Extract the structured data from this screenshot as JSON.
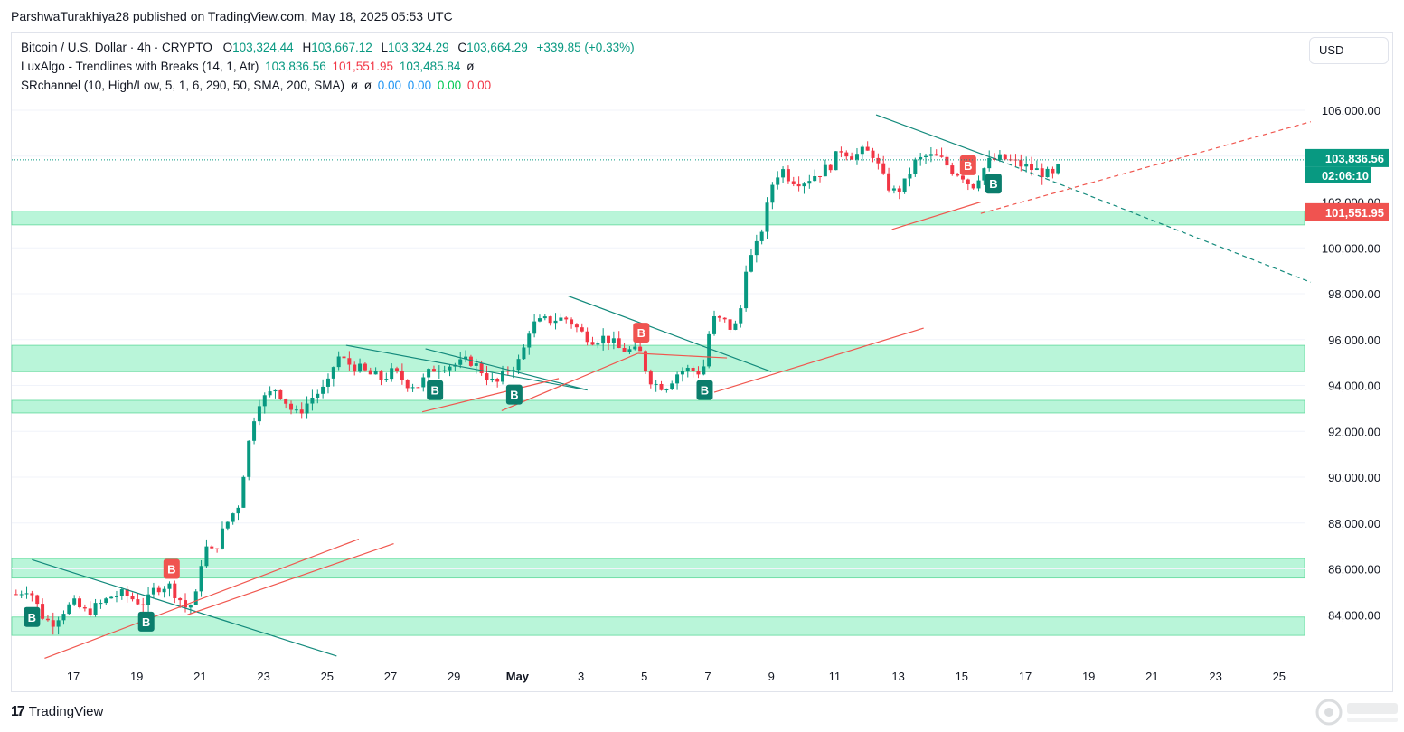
{
  "header": {
    "published": "ParshwaTurakhiya28 published on TradingView.com, May 18, 2025 05:53 UTC"
  },
  "legend": {
    "symbol": "Bitcoin / U.S. Dollar · 4h · CRYPTO",
    "o_label": "O",
    "o": "103,324.44",
    "h_label": "H",
    "h": "103,667.12",
    "l_label": "L",
    "l": "103,324.29",
    "c_label": "C",
    "c": "103,664.29",
    "change": "+339.85 (+0.33%)",
    "ind1_name": "LuxAlgo - Trendlines with Breaks (14, 1, Atr)",
    "ind1_v1": "103,836.56",
    "ind1_v2": "101,551.95",
    "ind1_v3": "103,485.84",
    "ind1_v4": "ø",
    "ind2_name": "SRchannel (10, High/Low, 5, 1, 6, 290, 50, SMA, 200, SMA)",
    "ind2_v1": "ø",
    "ind2_v2": "ø",
    "ind2_v3": "0.00",
    "ind2_v4": "0.00",
    "ind2_v5": "0.00",
    "ind2_v6": "0.00"
  },
  "currency_button": "USD",
  "brand": {
    "logo": "TradingView"
  },
  "price_labels": {
    "last": "103,836.56",
    "countdown": "02:06:10",
    "lower": "101,551.95"
  },
  "colors": {
    "up": "#089981",
    "down": "#f23645",
    "zone": "#b9f5d9",
    "zone_border": "#5fd99a",
    "teal_line": "#138a7c",
    "red_line": "#f0574f",
    "blue": "#2962ff"
  },
  "chart_data": {
    "type": "candlestick",
    "title": "Bitcoin / U.S. Dollar · 4h · CRYPTO",
    "y_ticks": [
      "106,000.00",
      "104,000.00",
      "102,000.00",
      "100,000.00",
      "98,000.00",
      "96,000.00",
      "94,000.00",
      "92,000.00",
      "90,000.00",
      "88,000.00",
      "86,000.00",
      "84,000.00"
    ],
    "y_tick_values": [
      106000,
      104000,
      102000,
      100000,
      98000,
      96000,
      94000,
      92000,
      90000,
      88000,
      86000,
      84000
    ],
    "x_ticks": [
      "17",
      "19",
      "21",
      "23",
      "25",
      "27",
      "29",
      "May",
      "3",
      "5",
      "7",
      "9",
      "11",
      "13",
      "15",
      "17",
      "19",
      "21",
      "23",
      "25"
    ],
    "x_tick_days": [
      17,
      19,
      21,
      23,
      25,
      27,
      29,
      31,
      33,
      35,
      37,
      39,
      41,
      43,
      45,
      47,
      49,
      51,
      53,
      55
    ],
    "ylim": [
      82000,
      107800
    ],
    "xlim_days": [
      15.2,
      56.0
    ],
    "close_path": [
      [
        15.2,
        84900
      ],
      [
        15.6,
        85200
      ],
      [
        16.0,
        84000
      ],
      [
        16.3,
        83600
      ],
      [
        16.7,
        84200
      ],
      [
        17.0,
        84500
      ],
      [
        17.4,
        84100
      ],
      [
        17.8,
        84400
      ],
      [
        18.2,
        84800
      ],
      [
        18.6,
        84900
      ],
      [
        19.0,
        84600
      ],
      [
        19.3,
        84500
      ],
      [
        19.6,
        85200
      ],
      [
        20.0,
        85300
      ],
      [
        20.3,
        84800
      ],
      [
        20.6,
        84200
      ],
      [
        20.9,
        84900
      ],
      [
        21.1,
        87000
      ],
      [
        21.4,
        86700
      ],
      [
        21.8,
        87900
      ],
      [
        22.2,
        88800
      ],
      [
        22.5,
        91300
      ],
      [
        22.8,
        93300
      ],
      [
        23.1,
        93500
      ],
      [
        23.4,
        93900
      ],
      [
        23.7,
        93300
      ],
      [
        24.0,
        92700
      ],
      [
        24.3,
        93100
      ],
      [
        24.6,
        93600
      ],
      [
        25.0,
        93900
      ],
      [
        25.3,
        95300
      ],
      [
        25.6,
        95000
      ],
      [
        25.9,
        94800
      ],
      [
        26.3,
        94500
      ],
      [
        26.7,
        94300
      ],
      [
        27.1,
        94600
      ],
      [
        27.5,
        94100
      ],
      [
        27.9,
        94000
      ],
      [
        28.3,
        94700
      ],
      [
        28.7,
        94900
      ],
      [
        29.1,
        94900
      ],
      [
        29.5,
        95100
      ],
      [
        29.9,
        94600
      ],
      [
        30.3,
        94000
      ],
      [
        30.7,
        94700
      ],
      [
        31.1,
        95100
      ],
      [
        31.4,
        96600
      ],
      [
        31.8,
        96800
      ],
      [
        32.2,
        96900
      ],
      [
        32.6,
        96900
      ],
      [
        33.0,
        96300
      ],
      [
        33.4,
        96000
      ],
      [
        33.8,
        96100
      ],
      [
        34.2,
        95600
      ],
      [
        34.6,
        95500
      ],
      [
        34.9,
        95400
      ],
      [
        35.1,
        94400
      ],
      [
        35.4,
        94000
      ],
      [
        35.7,
        94000
      ],
      [
        36.0,
        94500
      ],
      [
        36.3,
        94700
      ],
      [
        36.7,
        94600
      ],
      [
        36.9,
        94900
      ],
      [
        37.1,
        96900
      ],
      [
        37.5,
        96800
      ],
      [
        37.8,
        96400
      ],
      [
        38.0,
        97000
      ],
      [
        38.2,
        99200
      ],
      [
        38.5,
        99900
      ],
      [
        38.8,
        101300
      ],
      [
        39.0,
        102700
      ],
      [
        39.3,
        103500
      ],
      [
        39.6,
        103000
      ],
      [
        40.0,
        102900
      ],
      [
        40.4,
        103200
      ],
      [
        40.8,
        103500
      ],
      [
        41.2,
        104300
      ],
      [
        41.6,
        104000
      ],
      [
        41.9,
        104200
      ],
      [
        42.2,
        104100
      ],
      [
        42.6,
        102800
      ],
      [
        42.9,
        102400
      ],
      [
        43.2,
        102800
      ],
      [
        43.5,
        103700
      ],
      [
        43.9,
        104000
      ],
      [
        44.3,
        103900
      ],
      [
        44.7,
        103400
      ],
      [
        45.1,
        103100
      ],
      [
        45.3,
        102600
      ],
      [
        45.6,
        103300
      ],
      [
        45.9,
        103800
      ],
      [
        46.3,
        103900
      ],
      [
        46.7,
        103700
      ],
      [
        47.1,
        103500
      ],
      [
        47.5,
        103300
      ],
      [
        47.9,
        103100
      ],
      [
        48.1,
        103600
      ]
    ],
    "series": [
      {
        "name": "LuxAlgo - Trendlines with Breaks (14, 1, Atr)",
        "values": [
          "103,836.56",
          "101,551.95",
          "103,485.84",
          "ø"
        ]
      }
    ],
    "support_resistance_zones": [
      [
        101000,
        101600
      ],
      [
        94600,
        95750
      ],
      [
        92800,
        93350
      ],
      [
        85600,
        86450
      ],
      [
        83100,
        83900
      ]
    ],
    "trendlines_down": [
      [
        [
          15.7,
          86400
        ],
        [
          25.3,
          82200
        ]
      ],
      [
        [
          25.6,
          95750
        ],
        [
          33.2,
          93800
        ]
      ],
      [
        [
          28.1,
          95600
        ],
        [
          33.2,
          93800
        ]
      ],
      [
        [
          32.6,
          97900
        ],
        [
          39.0,
          94600
        ]
      ],
      [
        [
          42.3,
          105800
        ],
        [
          46.2,
          103800
        ]
      ],
      [
        [
          46.2,
          103800
        ],
        [
          56.0,
          98500
        ]
      ]
    ],
    "trendlines_up": [
      [
        [
          16.1,
          82100
        ],
        [
          26.0,
          87300
        ]
      ],
      [
        [
          20.6,
          84000
        ],
        [
          27.1,
          87100
        ]
      ],
      [
        [
          28.0,
          92850
        ],
        [
          32.3,
          94300
        ]
      ],
      [
        [
          30.5,
          92900
        ],
        [
          34.8,
          95400
        ]
      ],
      [
        [
          34.8,
          95400
        ],
        [
          37.6,
          95200
        ]
      ],
      [
        [
          37.2,
          93700
        ],
        [
          43.8,
          96500
        ]
      ],
      [
        [
          42.8,
          100800
        ],
        [
          45.6,
          102000
        ]
      ],
      [
        [
          45.6,
          101500
        ],
        [
          56.0,
          105500
        ]
      ]
    ],
    "break_labels": [
      {
        "day": 15.7,
        "price": 83900,
        "text": "B",
        "kind": "up"
      },
      {
        "day": 19.3,
        "price": 83700,
        "text": "B",
        "kind": "up"
      },
      {
        "day": 20.1,
        "price": 86000,
        "text": "B",
        "kind": "down"
      },
      {
        "day": 28.4,
        "price": 93800,
        "text": "B",
        "kind": "up"
      },
      {
        "day": 30.9,
        "price": 93600,
        "text": "B",
        "kind": "up"
      },
      {
        "day": 34.9,
        "price": 96300,
        "text": "B",
        "kind": "down"
      },
      {
        "day": 36.9,
        "price": 93800,
        "text": "B",
        "kind": "up"
      },
      {
        "day": 45.2,
        "price": 103600,
        "text": "B",
        "kind": "down"
      },
      {
        "day": 46.0,
        "price": 102800,
        "text": "B",
        "kind": "up"
      }
    ],
    "last_price": 103836.56,
    "lower_level": 101551.95
  }
}
